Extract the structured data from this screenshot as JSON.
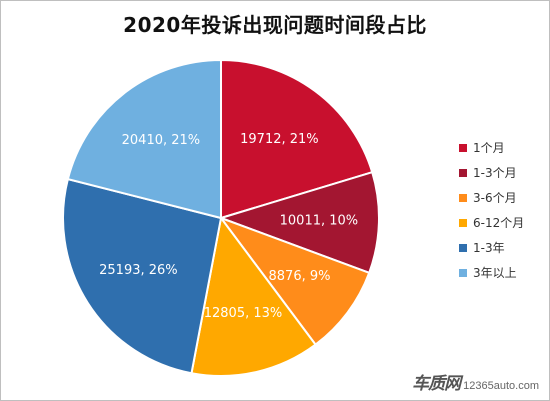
{
  "chart_data": {
    "type": "pie",
    "title": "2020年投诉出现问题时间段占比",
    "legend_position": "right",
    "slices": [
      {
        "label": "1个月",
        "value": 19712,
        "percent": "21%",
        "color": "#c8102e"
      },
      {
        "label": "1-3个月",
        "value": 10011,
        "percent": "10%",
        "color": "#a31631"
      },
      {
        "label": "3-6个月",
        "value": 8876,
        "percent": "9%",
        "color": "#ff8c1a"
      },
      {
        "label": "6-12个月",
        "value": 12805,
        "percent": "13%",
        "color": "#ffa800"
      },
      {
        "label": "1-3年",
        "value": 25193,
        "percent": "26%",
        "color": "#2f6fae"
      },
      {
        "label": "3年以上",
        "value": 20410,
        "percent": "21%",
        "color": "#6fb0e0"
      }
    ]
  },
  "watermark": {
    "brand": "车质网",
    "url": "12365auto.com"
  }
}
